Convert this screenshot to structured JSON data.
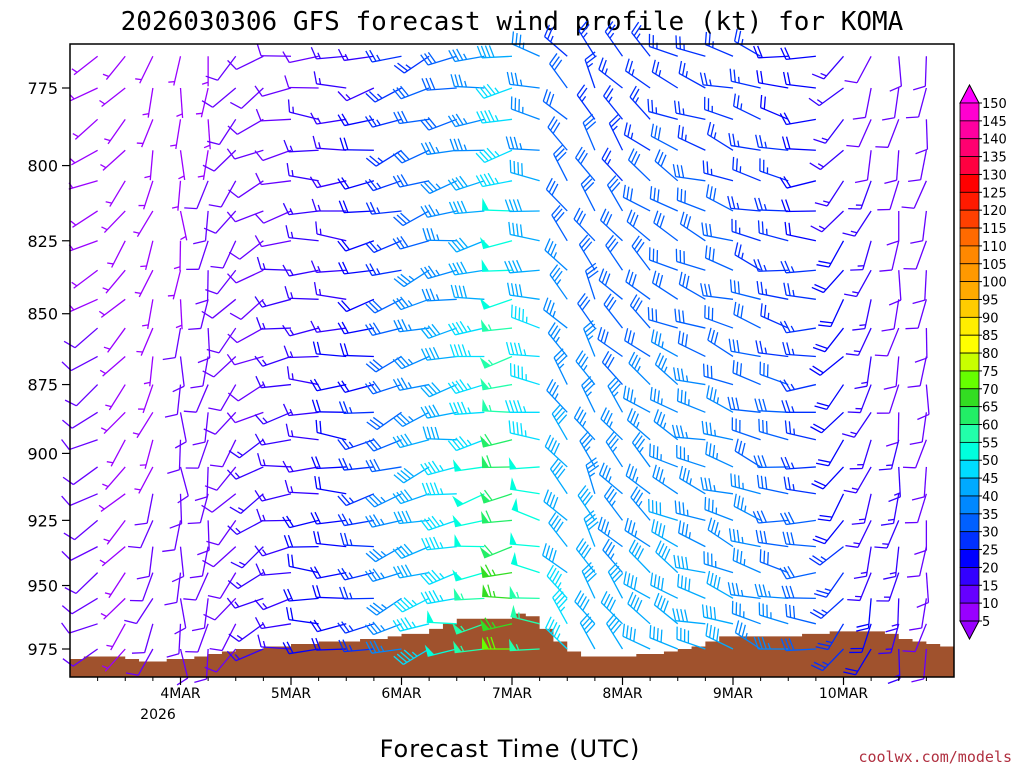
{
  "chart_data": {
    "type": "wind-profile",
    "title": "2026030306 GFS forecast wind profile (kt) for KOMA",
    "xlabel": "Forecast Time (UTC)",
    "ylabel": "",
    "credit": "coolwx.com/models",
    "y_ticks": [
      "775",
      "800",
      "825",
      "850",
      "875",
      "900",
      "925",
      "950",
      "975"
    ],
    "y_tick_values": [
      775,
      800,
      825,
      850,
      875,
      900,
      925,
      950,
      975
    ],
    "ylim": [
      765,
      985
    ],
    "x_ticks": [
      "4MAR",
      "5MAR",
      "6MAR",
      "7MAR",
      "8MAR",
      "9MAR",
      "10MAR"
    ],
    "x_tick_values": [
      24,
      48,
      72,
      96,
      120,
      144,
      168
    ],
    "x_subtick": "2026",
    "xlim": [
      0,
      192
    ],
    "colorbar": {
      "labels": [
        "150",
        "145",
        "140",
        "135",
        "130",
        "125",
        "120",
        "115",
        "110",
        "105",
        "100",
        "95",
        "90",
        "85",
        "80",
        "75",
        "70",
        "65",
        "60",
        "55",
        "50",
        "45",
        "40",
        "35",
        "30",
        "25",
        "20",
        "15",
        "10",
        "5"
      ],
      "colors": [
        "#ff00ff",
        "#ff00d0",
        "#ff00a0",
        "#ff0070",
        "#ff0040",
        "#ff0000",
        "#ff1a00",
        "#ff4000",
        "#ff6a00",
        "#ff8800",
        "#ff9900",
        "#ffaa00",
        "#ffcc00",
        "#ffee00",
        "#ffff00",
        "#c8ff00",
        "#66ff00",
        "#33dd22",
        "#22ee66",
        "#22ffaa",
        "#00ffdd",
        "#00ddff",
        "#00aaff",
        "#0088ff",
        "#0060ff",
        "#0030ff",
        "#0000ff",
        "#3300ff",
        "#6600ff",
        "#9900ff"
      ]
    },
    "terrain": {
      "color": "#a0522d",
      "x_hours": [
        0,
        3,
        6,
        9,
        12,
        15,
        18,
        21,
        24,
        27,
        30,
        33,
        36,
        39,
        42,
        45,
        48,
        51,
        54,
        57,
        60,
        63,
        66,
        69,
        72,
        75,
        78,
        81,
        84,
        87,
        90,
        93,
        96,
        99,
        102,
        105,
        108,
        111,
        114,
        117,
        120,
        123,
        126,
        129,
        132,
        135,
        138,
        141,
        144,
        147,
        150,
        153,
        156,
        159,
        162,
        165,
        168,
        171,
        174,
        177,
        180,
        183,
        186,
        189,
        192
      ],
      "pressure_hPa": [
        979,
        978,
        978,
        978,
        979,
        980,
        980,
        979,
        979,
        978,
        977,
        976,
        975,
        975,
        974,
        974,
        973,
        973,
        972,
        972,
        972,
        971,
        971,
        970,
        969,
        969,
        967,
        965,
        963,
        963,
        963,
        963,
        961,
        962,
        967,
        972,
        976,
        978,
        978,
        978,
        978,
        977,
        977,
        976,
        975,
        974,
        972,
        970,
        970,
        970,
        970,
        970,
        970,
        969,
        969,
        968,
        968,
        968,
        968,
        969,
        971,
        972,
        973,
        974,
        975
      ]
    },
    "barbs": {
      "time_hours": [
        0,
        6,
        12,
        18,
        24,
        30,
        36,
        42,
        48,
        54,
        60,
        66,
        72,
        78,
        84,
        90,
        96,
        102,
        108,
        114,
        120,
        126,
        132,
        138,
        144,
        150,
        156,
        162,
        168,
        174,
        180,
        186,
        192
      ],
      "levels_hPa": [
        765,
        775,
        785,
        795,
        805,
        815,
        825,
        835,
        845,
        855,
        865,
        875,
        885,
        895,
        905,
        915,
        925,
        935,
        945,
        955,
        965,
        975
      ],
      "speed_kt_by_time": [
        10,
        8,
        6,
        7,
        8,
        9,
        10,
        12,
        14,
        16,
        18,
        22,
        30,
        36,
        40,
        45,
        55,
        45,
        36,
        34,
        32,
        33,
        34,
        33,
        32,
        30,
        28,
        25,
        20,
        15,
        12,
        10,
        10
      ],
      "direction_deg_by_time": [
        250,
        240,
        220,
        200,
        180,
        190,
        220,
        240,
        260,
        270,
        270,
        260,
        250,
        250,
        260,
        260,
        260,
        280,
        320,
        330,
        320,
        310,
        300,
        290,
        290,
        290,
        280,
        270,
        220,
        200,
        190,
        190,
        190
      ]
    }
  }
}
